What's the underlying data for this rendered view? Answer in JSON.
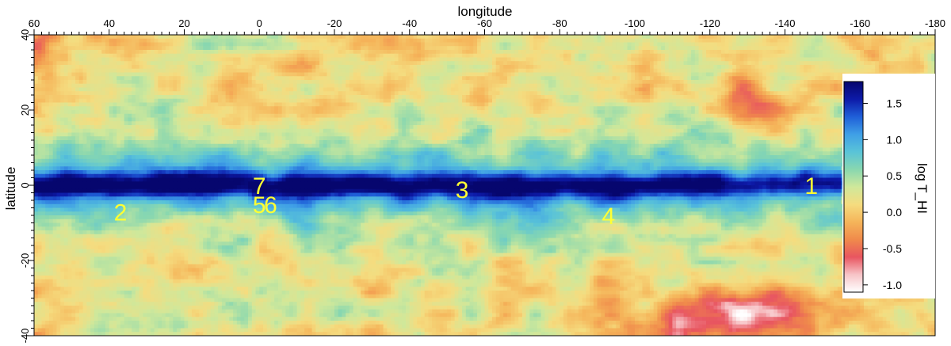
{
  "chart_data": {
    "type": "heatmap",
    "title": "",
    "xlabel": "longitude",
    "ylabel": "latitude",
    "xlim": [
      60,
      -180
    ],
    "ylim": [
      -40,
      40
    ],
    "x_ticks": [
      60,
      40,
      20,
      0,
      -20,
      -40,
      -60,
      -80,
      -100,
      -120,
      -140,
      -160,
      -180
    ],
    "y_ticks": [
      40,
      20,
      0,
      -20,
      -40
    ],
    "colorbar": {
      "label": "log T_HI",
      "range": [
        -1.1,
        1.8
      ],
      "ticks": [
        1.5,
        1.0,
        0.5,
        0.0,
        -0.5,
        -1.0
      ],
      "colors": [
        "#ffffff",
        "#f7c4c7",
        "#e85560",
        "#f08a4b",
        "#f5b55a",
        "#f5dc7f",
        "#cfe89b",
        "#88d7b0",
        "#59c3d8",
        "#3f9fe6",
        "#1f5fd8",
        "#0d1aa8",
        "#06066e"
      ],
      "placement": "right-inside"
    },
    "markers": [
      {
        "label": "1",
        "x": -147,
        "y": 0
      },
      {
        "label": "2",
        "x": 37,
        "y": -7
      },
      {
        "label": "3",
        "x": -54,
        "y": -1
      },
      {
        "label": "4",
        "x": -93,
        "y": -8
      },
      {
        "label": "5",
        "x": 0,
        "y": -5
      },
      {
        "label": "6",
        "x": -3,
        "y": -5
      },
      {
        "label": "7",
        "x": 0,
        "y": 0
      }
    ],
    "description_of_field": [
      {
        "x_range": [
          60,
          -155
        ],
        "y_range": [
          -4,
          4
        ],
        "level": 1.7
      },
      {
        "x_range": [
          60,
          -180
        ],
        "y_range": [
          -15,
          15
        ],
        "level": 0.8
      },
      {
        "x_range": [
          -95,
          -170
        ],
        "y_range": [
          -40,
          -20
        ],
        "level": -0.6
      },
      {
        "x_range": [
          60,
          -180
        ],
        "y_range": [
          -40,
          40
        ],
        "level": 0.2
      }
    ]
  }
}
